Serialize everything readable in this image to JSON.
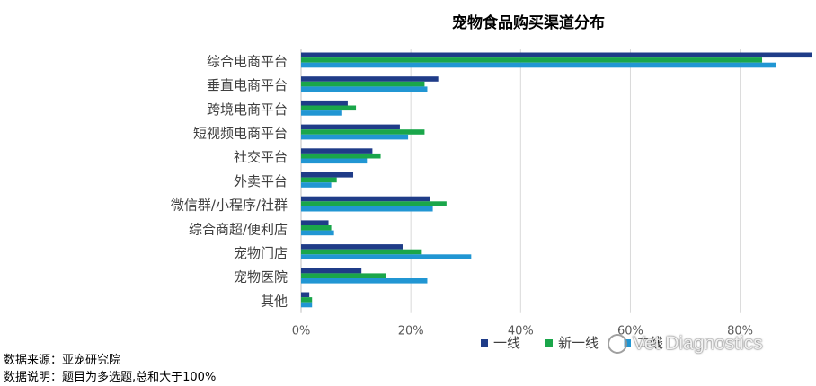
{
  "chart_data": {
    "type": "bar",
    "orientation": "horizontal",
    "title": "宠物食品购买渠道分布",
    "categories": [
      "综合电商平台",
      "垂直电商平台",
      "跨境电商平台",
      "短视频电商平台",
      "社交平台",
      "外卖平台",
      "微信群/小程序/社群",
      "综合商超/便利店",
      "宠物门店",
      "宠物医院",
      "其他"
    ],
    "series": [
      {
        "name": "一线",
        "color": "#1f3c88",
        "values": [
          93,
          25,
          8.5,
          18,
          13,
          9.5,
          23.5,
          5,
          18.5,
          11,
          1.5
        ]
      },
      {
        "name": "新一线",
        "color": "#1aa64a",
        "values": [
          84,
          22.5,
          10,
          22.5,
          14.5,
          6.5,
          26.5,
          5.5,
          22,
          15.5,
          2
        ]
      },
      {
        "name": "二线",
        "color": "#2196d3",
        "values": [
          86.5,
          23,
          7.5,
          19.5,
          12,
          5.5,
          24,
          6,
          31,
          23,
          2
        ]
      }
    ],
    "xlim": [
      0,
      93
    ],
    "xticks": [
      0,
      20,
      40,
      60,
      80
    ],
    "xtick_labels": [
      "0%",
      "20%",
      "40%",
      "60%",
      "80%"
    ],
    "legend_position": "bottom-right",
    "grid": true
  },
  "notes": {
    "source": "数据来源：亚宠研究院",
    "explanation": "数据说明：题目为多选题,总和大于100%"
  },
  "watermark": {
    "text": "Vet Diagnostics"
  }
}
